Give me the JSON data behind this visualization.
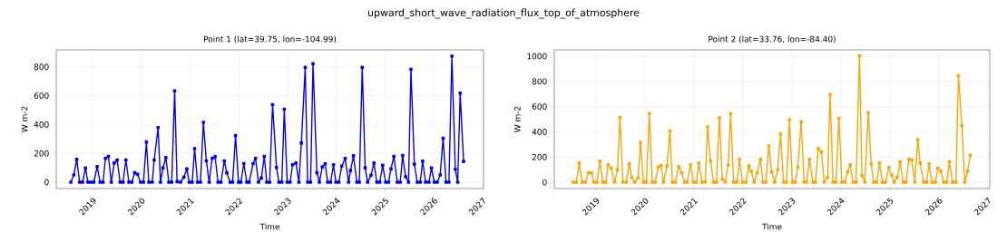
{
  "chart_data": [
    {
      "type": "line",
      "title": "upward_short_wave_radiation_flux_top_of_atmosphere",
      "subtitle": "Point 1 (lat=39.75, lon=-104.99)",
      "xlabel": "Time",
      "ylabel": "W m-2",
      "xlim": [
        2018.25,
        2027.02
      ],
      "xticks": [
        2019,
        2020,
        2021,
        2022,
        2023,
        2024,
        2025,
        2026,
        2027
      ],
      "ylim": [
        -44,
        918
      ],
      "yticks": [
        0,
        200,
        400,
        600,
        800
      ],
      "grid": true,
      "marker": "square",
      "x": [
        2018.55,
        2018.61,
        2018.67,
        2018.73,
        2018.79,
        2018.85,
        2018.9,
        2018.96,
        2019.02,
        2019.09,
        2019.15,
        2019.21,
        2019.26,
        2019.32,
        2019.38,
        2019.44,
        2019.5,
        2019.56,
        2019.62,
        2019.68,
        2019.74,
        2019.8,
        2019.86,
        2019.92,
        2019.98,
        2020.04,
        2020.1,
        2020.15,
        2020.22,
        2020.26,
        2020.34,
        2020.39,
        2020.44,
        2020.5,
        2020.56,
        2020.62,
        2020.68,
        2020.73,
        2020.8,
        2020.87,
        2020.93,
        2020.98,
        2021.04,
        2021.09,
        2021.15,
        2021.21,
        2021.27,
        2021.33,
        2021.39,
        2021.45,
        2021.51,
        2021.57,
        2021.63,
        2021.7,
        2021.75,
        2021.82,
        2021.87,
        2021.93,
        2021.99,
        2022.04,
        2022.1,
        2022.16,
        2022.21,
        2022.29,
        2022.34,
        2022.4,
        2022.46,
        2022.52,
        2022.57,
        2022.63,
        2022.69,
        2022.77,
        2022.82,
        2022.88,
        2022.93,
        2022.99,
        2023.05,
        2023.1,
        2023.17,
        2023.23,
        2023.28,
        2023.36,
        2023.41,
        2023.47,
        2023.52,
        2023.6,
        2023.65,
        2023.71,
        2023.77,
        2023.82,
        2023.88,
        2023.94,
        2023.99,
        2024.05,
        2024.11,
        2024.18,
        2024.25,
        2024.29,
        2024.35,
        2024.42,
        2024.47,
        2024.53,
        2024.59,
        2024.64,
        2024.71,
        2024.77,
        2024.83,
        2024.89,
        2024.95,
        2025.01,
        2025.07,
        2025.12,
        2025.18,
        2025.25,
        2025.31,
        2025.36,
        2025.42,
        2025.48,
        2025.53,
        2025.6,
        2025.66,
        2025.72,
        2025.77,
        2025.83,
        2025.9,
        2025.95,
        2026.01,
        2026.07,
        2026.13,
        2026.19,
        2026.25,
        2026.31,
        2026.37,
        2026.44,
        2026.49,
        2026.54,
        2026.61
      ],
      "series": [
        {
          "color": "#0000ff",
          "values": [
            0,
            50,
            158,
            0,
            0,
            98,
            0,
            0,
            0,
            108,
            0,
            0,
            165,
            179,
            0,
            133,
            154,
            0,
            0,
            154,
            0,
            0,
            65,
            54,
            0,
            0,
            279,
            0,
            0,
            154,
            379,
            0,
            98,
            171,
            0,
            0,
            633,
            4,
            0,
            35,
            92,
            0,
            0,
            233,
            0,
            0,
            415,
            148,
            0,
            165,
            177,
            0,
            0,
            148,
            65,
            0,
            0,
            323,
            0,
            0,
            129,
            0,
            0,
            129,
            165,
            0,
            29,
            179,
            0,
            0,
            538,
            102,
            0,
            0,
            506,
            0,
            0,
            121,
            133,
            0,
            271,
            796,
            0,
            0,
            821,
            65,
            0,
            106,
            127,
            0,
            0,
            121,
            0,
            0,
            112,
            165,
            0,
            81,
            183,
            0,
            0,
            796,
            100,
            0,
            48,
            133,
            0,
            0,
            117,
            0,
            0,
            92,
            179,
            0,
            0,
            185,
            38,
            0,
            783,
            125,
            0,
            0,
            146,
            0,
            0,
            98,
            0,
            0,
            50,
            304,
            0,
            0,
            874,
            90,
            0,
            617,
            144
          ]
        }
      ]
    },
    {
      "type": "line",
      "subtitle": "Point 2 (lat=33.76, lon=-84.40)",
      "xlabel": "Time",
      "ylabel": "W m-2",
      "xlim": [
        2018.15,
        2027.04
      ],
      "xticks": [
        2019,
        2020,
        2021,
        2022,
        2023,
        2024,
        2025,
        2026,
        2027
      ],
      "ylim": [
        -50,
        1050
      ],
      "yticks": [
        0,
        200,
        400,
        600,
        800,
        1000
      ],
      "grid": true,
      "marker": "square",
      "x": [
        2018.54,
        2018.6,
        2018.66,
        2018.72,
        2018.78,
        2018.85,
        2018.91,
        2018.96,
        2019.02,
        2019.08,
        2019.14,
        2019.2,
        2019.25,
        2019.31,
        2019.38,
        2019.44,
        2019.49,
        2019.55,
        2019.62,
        2019.68,
        2019.73,
        2019.79,
        2019.86,
        2019.91,
        2019.97,
        2020.03,
        2020.09,
        2020.15,
        2020.21,
        2020.27,
        2020.33,
        2020.38,
        2020.45,
        2020.51,
        2020.56,
        2020.62,
        2020.69,
        2020.75,
        2020.81,
        2020.86,
        2020.93,
        2020.99,
        2021.05,
        2021.1,
        2021.17,
        2021.23,
        2021.28,
        2021.34,
        2021.4,
        2021.46,
        2021.52,
        2021.58,
        2021.64,
        2021.7,
        2021.75,
        2021.81,
        2021.88,
        2021.93,
        2021.99,
        2022.06,
        2022.12,
        2022.17,
        2022.23,
        2022.29,
        2022.36,
        2022.41,
        2022.47,
        2022.53,
        2022.59,
        2022.65,
        2022.71,
        2022.77,
        2022.83,
        2022.89,
        2022.95,
        2023.01,
        2023.07,
        2023.12,
        2023.19,
        2023.25,
        2023.3,
        2023.36,
        2023.43,
        2023.48,
        2023.54,
        2023.6,
        2023.66,
        2023.73,
        2023.78,
        2023.84,
        2023.9,
        2023.96,
        2024.02,
        2024.08,
        2024.14,
        2024.19,
        2024.25,
        2024.31,
        2024.38,
        2024.43,
        2024.49,
        2024.56,
        2024.62,
        2024.67,
        2024.73,
        2024.79,
        2024.85,
        2024.91,
        2024.98,
        2025.04,
        2025.09,
        2025.15,
        2025.21,
        2025.27,
        2025.33,
        2025.39,
        2025.45,
        2025.51,
        2025.57,
        2025.62,
        2025.69,
        2025.75,
        2025.8,
        2025.86,
        2025.93,
        2025.98,
        2026.04,
        2026.1,
        2026.16,
        2026.22,
        2026.28,
        2026.35,
        2026.4,
        2026.47,
        2026.53,
        2026.59,
        2026.64
      ],
      "series": [
        {
          "color": "#ffa500",
          "values": [
            0,
            0,
            152,
            0,
            0,
            74,
            74,
            0,
            0,
            167,
            0,
            0,
            138,
            112,
            0,
            98,
            514,
            0,
            0,
            145,
            38,
            0,
            33,
            317,
            0,
            0,
            545,
            0,
            0,
            119,
            133,
            0,
            129,
            407,
            0,
            0,
            124,
            74,
            0,
            0,
            138,
            0,
            0,
            152,
            0,
            0,
            438,
            167,
            0,
            0,
            510,
            24,
            0,
            138,
            545,
            0,
            0,
            181,
            0,
            0,
            129,
            88,
            0,
            74,
            181,
            0,
            0,
            288,
            79,
            0,
            98,
            381,
            0,
            0,
            495,
            0,
            0,
            117,
            479,
            0,
            0,
            181,
            0,
            0,
            267,
            240,
            0,
            38,
            695,
            0,
            0,
            505,
            0,
            0,
            83,
            138,
            0,
            0,
            1002,
            52,
            0,
            552,
            145,
            0,
            0,
            152,
            0,
            0,
            117,
            57,
            0,
            38,
            162,
            0,
            0,
            181,
            176,
            0,
            338,
            152,
            0,
            0,
            148,
            0,
            0,
            112,
            88,
            0,
            0,
            162,
            0,
            0,
            845,
            450,
            0,
            88,
            214
          ]
        }
      ]
    }
  ]
}
